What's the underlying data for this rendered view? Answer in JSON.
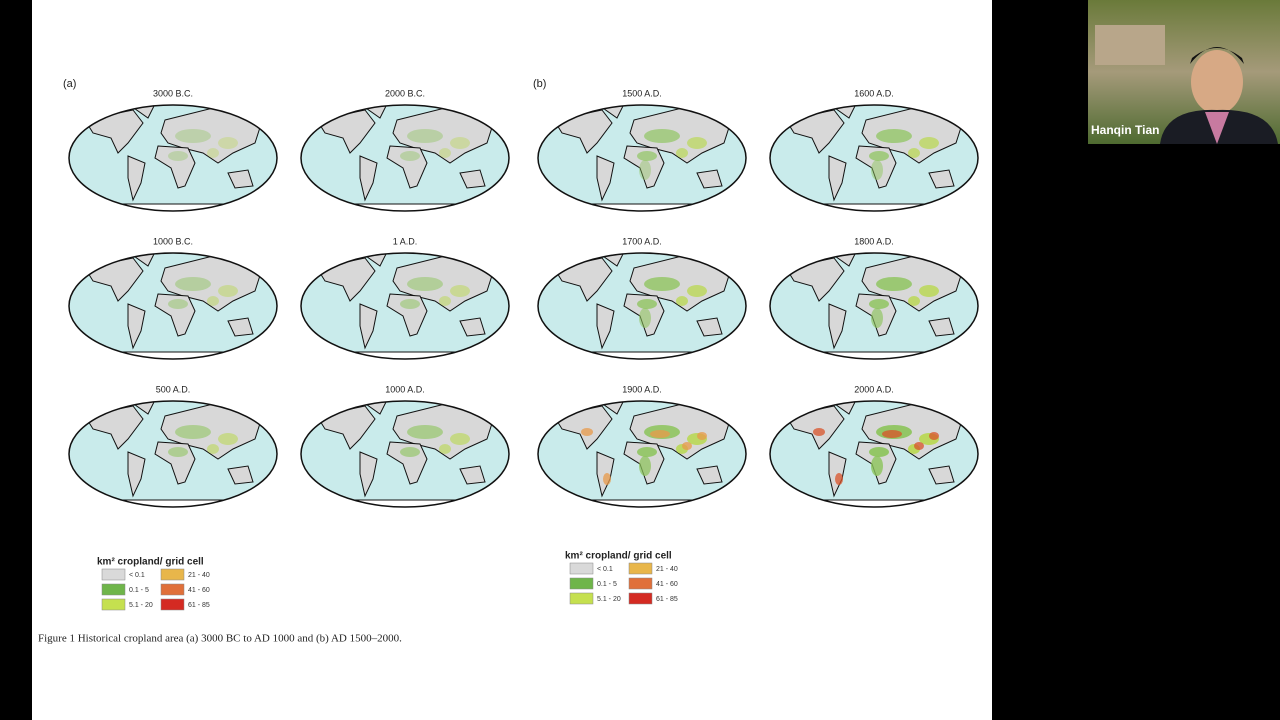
{
  "slide": {
    "panels": [
      {
        "label": "(a)",
        "maps": [
          "3000 B.C.",
          "2000 B.C.",
          "1000 B.C.",
          "1 A.D.",
          "500 A.D.",
          "1000 A.D."
        ]
      },
      {
        "label": "(b)",
        "maps": [
          "1500 A.D.",
          "1600 A.D.",
          "1700 A.D.",
          "1800 A.D.",
          "1900 A.D.",
          "2000 A.D."
        ]
      }
    ],
    "legends": [
      {
        "title": "km² cropland/ grid cell",
        "items": [
          "< 0.1",
          "0.1 - 5",
          "5.1 - 20",
          "21 - 40",
          "41 - 60",
          "61 - 85"
        ]
      },
      {
        "title": "km² cropland/ grid cell",
        "items": [
          "< 0.1",
          "0.1 - 5",
          "5.1 - 20",
          "21 - 40",
          "41 - 60",
          "61 - 85"
        ]
      }
    ],
    "caption": "Figure 1  Historical cropland area (a) 3000 BC to AD 1000 and (b) AD 1500–2000."
  },
  "participant": {
    "name": "Hanqin Tian"
  }
}
